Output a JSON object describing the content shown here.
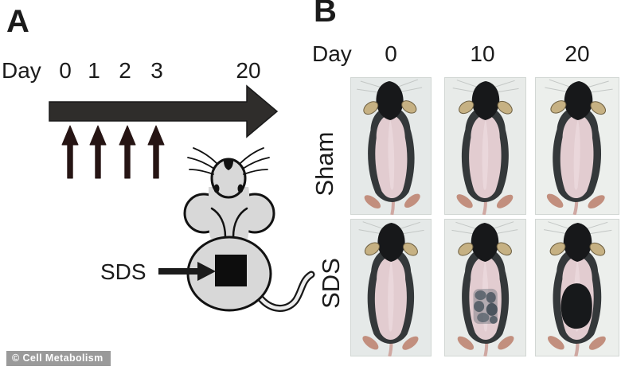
{
  "figure": {
    "credit": "© Cell Metabolism"
  },
  "panel_a": {
    "label": "A",
    "timeline": {
      "axis_label": "Day",
      "tick_labels": [
        "0",
        "1",
        "2",
        "3",
        "20"
      ],
      "injection_count": 4
    },
    "mouse_diagram": {
      "treatment_label": "SDS",
      "application_site": "black-square-patch-on-lower-back"
    }
  },
  "panel_b": {
    "label": "B",
    "column_axis_label": "Day",
    "columns": [
      "0",
      "10",
      "20"
    ],
    "rows": [
      {
        "label": "Sham",
        "cells": [
          {
            "day": "0",
            "back_appearance": "shaved-pink"
          },
          {
            "day": "10",
            "back_appearance": "shaved-pink"
          },
          {
            "day": "20",
            "back_appearance": "shaved-pink"
          }
        ]
      },
      {
        "label": "SDS",
        "cells": [
          {
            "day": "0",
            "back_appearance": "shaved-pink"
          },
          {
            "day": "10",
            "back_appearance": "patchy-dark-regrowth"
          },
          {
            "day": "20",
            "back_appearance": "solid-dark-regrowth"
          }
        ]
      }
    ]
  },
  "colors": {
    "text": "#1b1b1b",
    "timeline_arrow": "#2f2d2b",
    "injection_arrow": "#261514",
    "cartoon_body": "#d8d8d8",
    "cartoon_outline": "#121212",
    "sds_patch": "#0d0d0d",
    "photo_bg": "#e7eae8",
    "photo_fur_dark": "#17181a",
    "photo_flank": "#34383a",
    "photo_skin": "#e2ccd0",
    "photo_ear": "#c6b183",
    "regrowth_patchy": "#4d5a64",
    "regrowth_solid": "#17191b",
    "watermark_bg": "#9a9a9a",
    "watermark_text": "#ffffff"
  }
}
